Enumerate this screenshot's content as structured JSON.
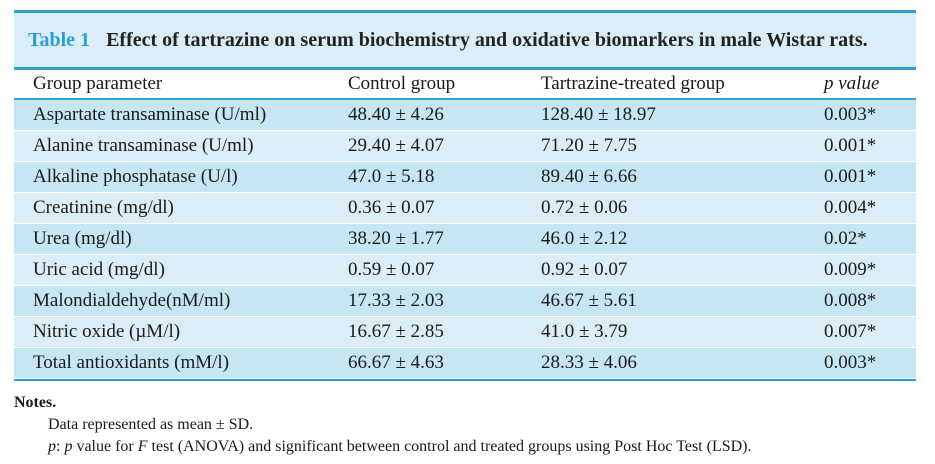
{
  "table": {
    "label": "Table 1",
    "title": "Effect of tartrazine on serum biochemistry and oxidative biomarkers in male Wistar rats.",
    "headers": [
      "Group parameter",
      "Control group",
      "Tartrazine-treated group",
      "p value"
    ],
    "rows": [
      [
        "Aspartate transaminase (U/ml)",
        "48.40 ± 4.26",
        "128.40 ± 18.97",
        "0.003*"
      ],
      [
        "Alanine transaminase (U/ml)",
        "29.40 ± 4.07",
        "71.20 ± 7.75",
        "0.001*"
      ],
      [
        "Alkaline phosphatase (U/l)",
        "47.0 ± 5.18",
        "89.40 ± 6.66",
        "0.001*"
      ],
      [
        "Creatinine (mg/dl)",
        "0.36 ± 0.07",
        "0.72 ± 0.06",
        "0.004*"
      ],
      [
        "Urea (mg/dl)",
        "38.20 ± 1.77",
        "46.0 ± 2.12",
        "0.02*"
      ],
      [
        "Uric acid (mg/dl)",
        "0.59 ± 0.07",
        "0.92 ± 0.07",
        "0.009*"
      ],
      [
        "Malondialdehyde(nM/ml)",
        "17.33 ± 2.03",
        "46.67 ± 5.61",
        "0.008*"
      ],
      [
        "Nitric oxide (µM/l)",
        "16.67 ± 2.85",
        "41.0 ± 3.79",
        "0.007*"
      ],
      [
        "Total antioxidants (mM/l)",
        "66.67 ± 4.63",
        "28.33 ± 4.06",
        "0.003*"
      ]
    ]
  },
  "notes": {
    "heading": "Notes.",
    "line1": "Data represented as mean ± SD.",
    "line2_p": "p",
    "line2_a": ": ",
    "line2_p2": "p",
    "line2_b": " value for ",
    "line2_F": "F",
    "line2_c": " test (ANOVA) and significant between control and treated groups using Post Hoc Test (LSD)."
  }
}
